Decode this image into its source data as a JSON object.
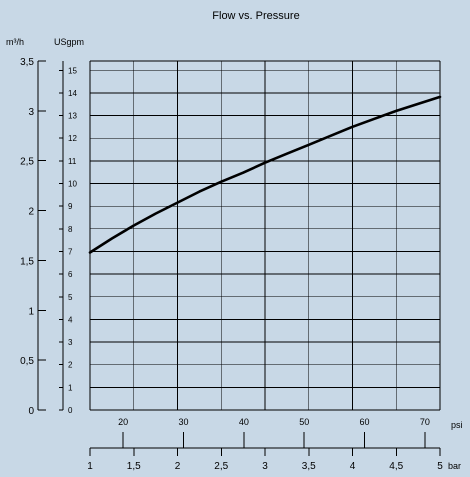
{
  "chart_data": {
    "type": "line",
    "title": "Flow vs. Pressure",
    "left_axis": {
      "unit": "m³/h",
      "range": [
        0,
        3.5
      ],
      "ticks": [
        "0",
        "0,5",
        "1",
        "1,5",
        "2",
        "2,5",
        "3",
        "3,5"
      ]
    },
    "inner_axis": {
      "unit": "USgpm",
      "range": [
        0,
        15.41
      ],
      "ticks": [
        "0",
        "1",
        "2",
        "3",
        "4",
        "5",
        "6",
        "7",
        "8",
        "9",
        "10",
        "11",
        "12",
        "13",
        "14",
        "15"
      ]
    },
    "psi_axis": {
      "unit": "psi",
      "range": [
        14.5,
        72.5
      ],
      "ticks": [
        "20",
        "30",
        "40",
        "50",
        "60",
        "70"
      ]
    },
    "bar_axis": {
      "unit": "bar",
      "range": [
        1,
        5
      ],
      "ticks": [
        "1",
        "1,5",
        "2",
        "2,5",
        "3",
        "3,5",
        "4",
        "4,5",
        "5"
      ]
    },
    "grid": true,
    "series": [
      {
        "x_bar": [
          1,
          1.25,
          1.5,
          1.75,
          2,
          2.25,
          2.5,
          2.75,
          3,
          3.25,
          3.5,
          3.75,
          4,
          4.25,
          4.5,
          4.75,
          5
        ],
        "y_m3h": [
          1.58,
          1.72,
          1.85,
          1.97,
          2.08,
          2.19,
          2.29,
          2.38,
          2.48,
          2.57,
          2.66,
          2.75,
          2.84,
          2.92,
          3.0,
          3.07,
          3.14
        ]
      }
    ]
  }
}
